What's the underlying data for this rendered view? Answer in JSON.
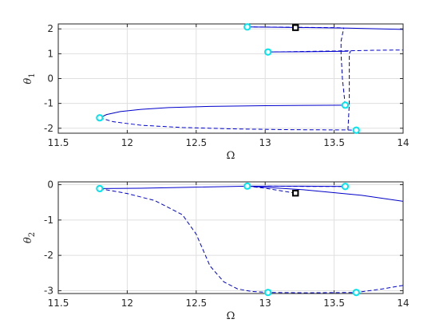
{
  "chart_data": [
    {
      "type": "line",
      "xlabel": "Ω",
      "ylabel": "θ1",
      "ylabel_main": "θ",
      "ylabel_sub": "1",
      "xlim": [
        11.5,
        14
      ],
      "ylim": [
        -2.2,
        2.2
      ],
      "x_ticks": [
        11.5,
        12,
        12.5,
        13,
        13.5,
        14
      ],
      "x_tick_labels": [
        "11.5",
        "12",
        "12.5",
        "13",
        "13.5",
        "14"
      ],
      "y_ticks": [
        2,
        1,
        0,
        -1,
        -2
      ],
      "y_tick_labels": [
        "2",
        "1",
        "0",
        "-1",
        "-2"
      ],
      "grid": true,
      "colors": {
        "line": "#0000cc",
        "bifurcation": "#00e5ee",
        "marker": "#000000"
      },
      "series": [
        {
          "style": "solid",
          "points": [
            [
              11.8,
              -1.58
            ],
            [
              11.85,
              -1.45
            ],
            [
              11.95,
              -1.33
            ],
            [
              12.1,
              -1.24
            ],
            [
              12.3,
              -1.17
            ],
            [
              12.6,
              -1.12
            ],
            [
              13.0,
              -1.09
            ],
            [
              13.3,
              -1.08
            ],
            [
              13.58,
              -1.07
            ]
          ]
        },
        {
          "style": "dashed",
          "points": [
            [
              11.8,
              -1.58
            ],
            [
              11.9,
              -1.74
            ],
            [
              12.1,
              -1.88
            ],
            [
              12.4,
              -1.97
            ],
            [
              12.8,
              -2.03
            ],
            [
              13.2,
              -2.06
            ],
            [
              13.6,
              -2.07
            ],
            [
              13.66,
              -2.08
            ]
          ]
        },
        {
          "style": "dashed",
          "points": [
            [
              13.58,
              -1.07
            ],
            [
              13.56,
              0.0
            ],
            [
              13.55,
              1.0
            ],
            [
              13.55,
              1.5
            ],
            [
              13.57,
              2.04
            ]
          ]
        },
        {
          "style": "dashed",
          "points": [
            [
              13.6,
              -2.07
            ],
            [
              13.61,
              -1.0
            ],
            [
              13.61,
              0.0
            ],
            [
              13.61,
              1.0
            ],
            [
              13.62,
              1.12
            ]
          ]
        },
        {
          "style": "solid",
          "points": [
            [
              12.87,
              2.08
            ],
            [
              13.2,
              2.06
            ],
            [
              13.6,
              2.03
            ],
            [
              14.0,
              1.98
            ]
          ]
        },
        {
          "style": "dashed",
          "points": [
            [
              12.87,
              2.08
            ],
            [
              13.1,
              2.07
            ],
            [
              13.3,
              2.06
            ],
            [
              13.5,
              2.05
            ],
            [
              13.57,
              2.04
            ]
          ]
        },
        {
          "style": "solid",
          "points": [
            [
              13.02,
              1.07
            ],
            [
              13.3,
              1.08
            ],
            [
              13.6,
              1.1
            ]
          ]
        },
        {
          "style": "dashed",
          "points": [
            [
              13.02,
              1.07
            ],
            [
              13.5,
              1.11
            ],
            [
              13.62,
              1.12
            ],
            [
              13.8,
              1.14
            ],
            [
              14.0,
              1.15
            ]
          ]
        }
      ],
      "bifurcation_points": [
        [
          11.8,
          -1.58
        ],
        [
          12.87,
          2.08
        ],
        [
          13.02,
          1.07
        ],
        [
          13.58,
          -1.07
        ],
        [
          13.66,
          -2.08
        ]
      ],
      "marker_points": [
        [
          13.22,
          2.05
        ]
      ]
    },
    {
      "type": "line",
      "xlabel": "Ω",
      "ylabel": "θ2",
      "ylabel_main": "θ",
      "ylabel_sub": "2",
      "xlim": [
        11.5,
        14
      ],
      "ylim": [
        -3.08,
        0.08
      ],
      "x_ticks": [
        11.5,
        12,
        12.5,
        13,
        13.5,
        14
      ],
      "x_tick_labels": [
        "11.5",
        "12",
        "12.5",
        "13",
        "13.5",
        "14"
      ],
      "y_ticks": [
        0,
        -1,
        -2,
        -3
      ],
      "y_tick_labels": [
        "0",
        "-1",
        "-2",
        "-3"
      ],
      "grid": true,
      "colors": {
        "line": "#0000cc",
        "bifurcation": "#00e5ee",
        "marker": "#000000"
      },
      "series": [
        {
          "style": "solid",
          "points": [
            [
              11.8,
              -0.11
            ],
            [
              12.1,
              -0.1
            ],
            [
              12.5,
              -0.07
            ],
            [
              12.87,
              -0.04
            ],
            [
              13.2,
              -0.04
            ],
            [
              13.58,
              -0.05
            ]
          ]
        },
        {
          "style": "solid",
          "points": [
            [
              12.87,
              -0.04
            ],
            [
              13.3,
              -0.15
            ],
            [
              13.7,
              -0.3
            ],
            [
              14.0,
              -0.47
            ]
          ]
        },
        {
          "style": "dashed",
          "points": [
            [
              12.87,
              -0.04
            ],
            [
              13.0,
              -0.1
            ],
            [
              13.22,
              -0.24
            ]
          ]
        },
        {
          "style": "dashed",
          "points": [
            [
              13.02,
              -0.04
            ],
            [
              13.3,
              -0.05
            ],
            [
              13.58,
              -0.05
            ]
          ]
        },
        {
          "style": "dashed",
          "points": [
            [
              11.8,
              -0.11
            ],
            [
              12.0,
              -0.25
            ],
            [
              12.2,
              -0.45
            ],
            [
              12.4,
              -0.85
            ],
            [
              12.5,
              -1.4
            ],
            [
              12.55,
              -1.85
            ],
            [
              12.6,
              -2.3
            ],
            [
              12.7,
              -2.75
            ],
            [
              12.8,
              -2.95
            ],
            [
              12.9,
              -3.02
            ],
            [
              13.02,
              -3.05
            ],
            [
              13.3,
              -3.06
            ],
            [
              13.66,
              -3.05
            ],
            [
              13.85,
              -2.95
            ],
            [
              14.0,
              -2.85
            ]
          ]
        }
      ],
      "bifurcation_points": [
        [
          11.8,
          -0.11
        ],
        [
          12.87,
          -0.04
        ],
        [
          13.58,
          -0.05
        ],
        [
          13.02,
          -3.05
        ],
        [
          13.66,
          -3.05
        ]
      ],
      "marker_points": [
        [
          13.22,
          -0.24
        ]
      ]
    }
  ]
}
